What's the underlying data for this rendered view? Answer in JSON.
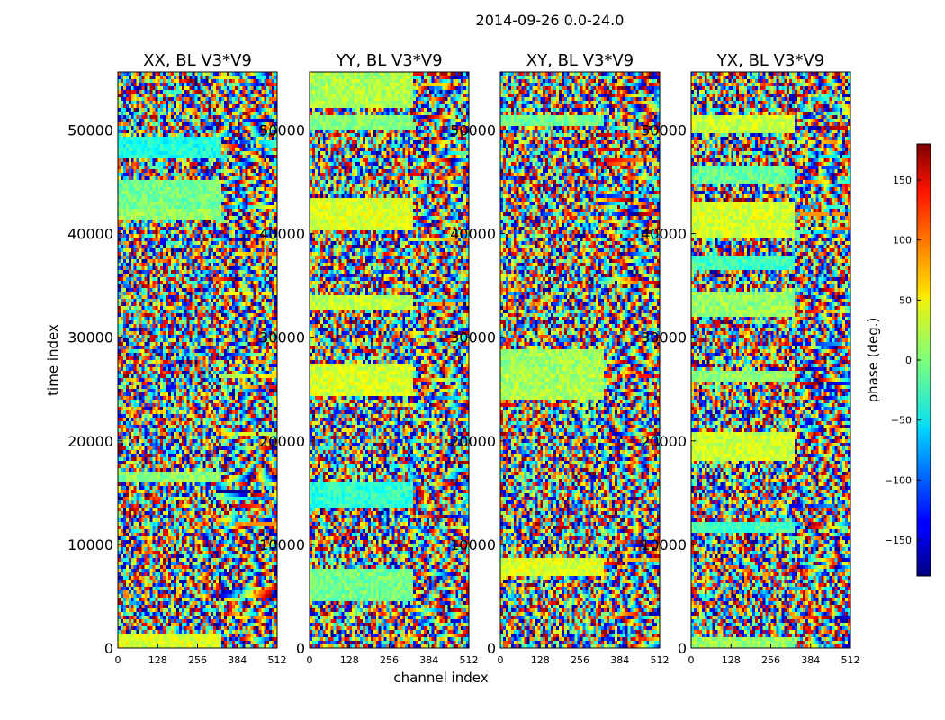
{
  "figure_title": "2014-09-26 0.0-24.0",
  "chart_data": {
    "type": "heatmap",
    "description_unit": "phase (deg.)",
    "xlabel": "channel index",
    "ylabel": "time index",
    "xlim": [
      0,
      512
    ],
    "ylim": [
      0,
      55600
    ],
    "x_ticks": [
      0,
      128,
      256,
      384,
      512
    ],
    "y_ticks": [
      0,
      10000,
      20000,
      30000,
      40000,
      50000
    ],
    "panels": [
      {
        "title": "XX, BL V3*V9",
        "pol": "XX"
      },
      {
        "title": "YY, BL V3*V9",
        "pol": "YY"
      },
      {
        "title": "XY, BL V3*V9",
        "pol": "XY"
      },
      {
        "title": "YX, BL V3*V9",
        "pol": "YX"
      }
    ],
    "colorbar": {
      "label": "phase (deg.)",
      "range": [
        -180,
        180
      ],
      "ticks": [
        150,
        100,
        50,
        0,
        -50,
        -100,
        -150
      ],
      "tick_labels": [
        "150",
        "100",
        "50",
        "0",
        "−50",
        "−100",
        "−150"
      ],
      "colormap": "jet"
    }
  }
}
